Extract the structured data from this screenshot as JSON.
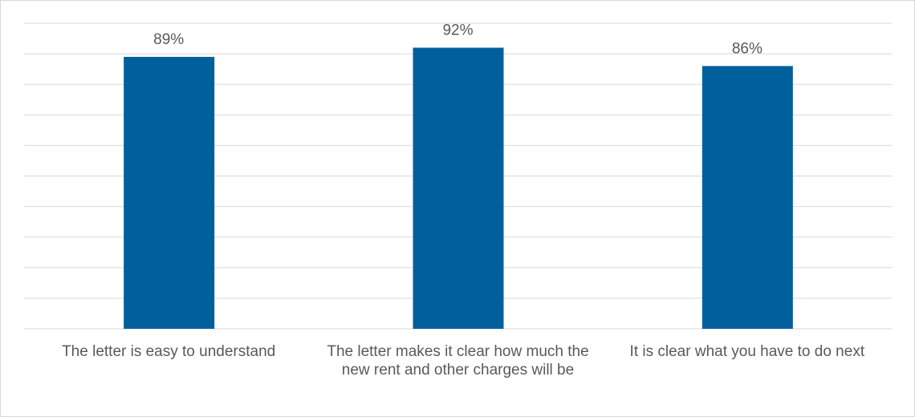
{
  "chart_data": {
    "type": "bar",
    "categories": [
      "The letter is easy to understand",
      "The letter makes it clear how much the new rent and other charges will be",
      "It is clear what you have to do next"
    ],
    "values": [
      89,
      92,
      86
    ],
    "value_labels": [
      "89%",
      "92%",
      "86%"
    ],
    "color": "#00609c",
    "ylim": [
      0,
      100
    ],
    "yticks": [
      0,
      10,
      20,
      30,
      40,
      50,
      60,
      70,
      80,
      90,
      100
    ],
    "grid": true
  }
}
